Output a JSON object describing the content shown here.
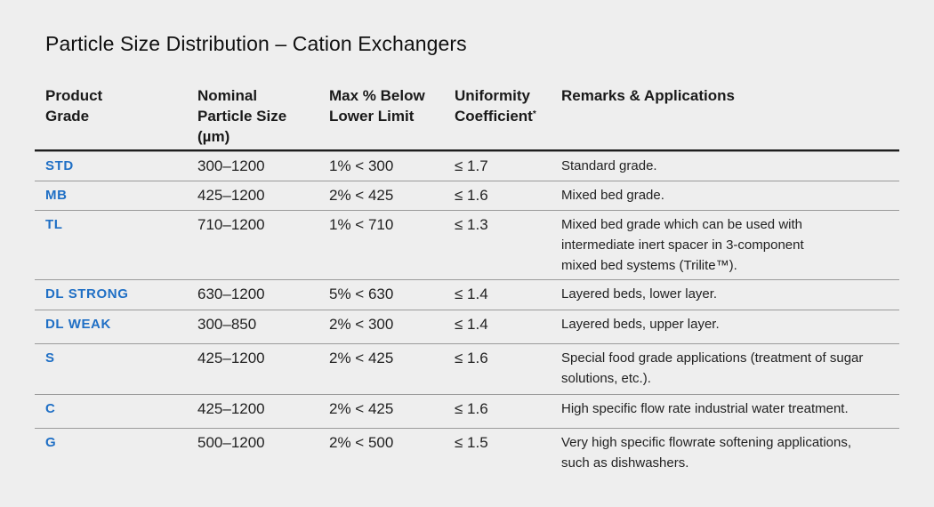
{
  "title": "Particle Size Distribution – Cation Exchangers",
  "headers": {
    "grade": [
      "Product",
      "Grade"
    ],
    "size": [
      "Nominal",
      "Particle Size",
      "(µm)"
    ],
    "max_below": [
      "Max % Below",
      "Lower Limit"
    ],
    "uniformity": [
      "Uniformity",
      "Coefficient"
    ],
    "uniformity_mark": "*",
    "remarks": "Remarks & Applications"
  },
  "rows": [
    {
      "grade": "STD",
      "size": "300–1200",
      "max_below": "1% < 300",
      "uc": "≤ 1.7",
      "remarks": [
        "Standard grade."
      ]
    },
    {
      "grade": "MB",
      "size": "425–1200",
      "max_below": "2% < 425",
      "uc": "≤ 1.6",
      "remarks": [
        "Mixed bed grade."
      ]
    },
    {
      "grade": "TL",
      "size": "710–1200",
      "max_below": "1% < 710",
      "uc": "≤ 1.3",
      "remarks": [
        "Mixed bed grade which can be used with",
        "intermediate inert spacer in 3-component",
        "mixed bed systems (Trilite™)."
      ]
    },
    {
      "grade": "DL STRONG",
      "size": "630–1200",
      "max_below": "5% < 630",
      "uc": "≤ 1.4",
      "remarks": [
        "Layered beds, lower layer."
      ]
    },
    {
      "grade": "DL WEAK",
      "size": "300–850",
      "max_below": "2% < 300",
      "uc": "≤ 1.4",
      "remarks": [
        "Layered beds, upper layer."
      ]
    },
    {
      "grade": "S",
      "size": "425–1200",
      "max_below": "2% < 425",
      "uc": "≤ 1.6",
      "remarks": [
        "Special food grade applications (treatment of sugar",
        "solutions, etc.)."
      ]
    },
    {
      "grade": "C",
      "size": "425–1200",
      "max_below": "2% < 425",
      "uc": "≤ 1.6",
      "remarks": [
        "High specific flow rate industrial water treatment."
      ]
    },
    {
      "grade": "G",
      "size": "500–1200",
      "max_below": "2% < 500",
      "uc": "≤ 1.5",
      "remarks": [
        "Very high specific flowrate softening applications,",
        "such as dishwashers."
      ]
    }
  ]
}
